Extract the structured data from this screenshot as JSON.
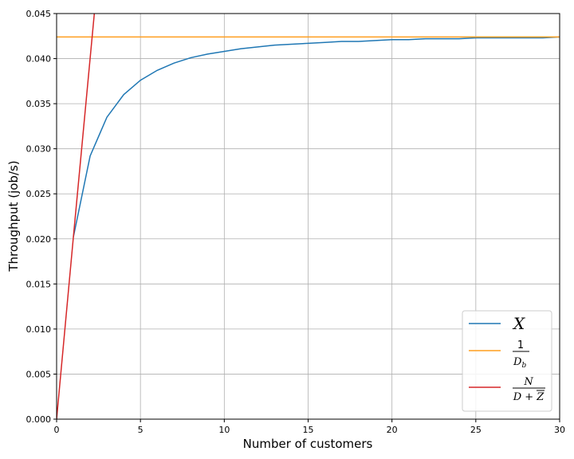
{
  "chart_data": {
    "type": "line",
    "title": "",
    "xlabel": "Number of customers",
    "ylabel": "Throughput (job/s)",
    "xlim": [
      0,
      30
    ],
    "ylim": [
      0,
      0.045
    ],
    "xticks": [
      0,
      5,
      10,
      15,
      20,
      25,
      30
    ],
    "yticks": [
      0.0,
      0.005,
      0.01,
      0.015,
      0.02,
      0.025,
      0.03,
      0.035,
      0.04,
      0.045
    ],
    "grid": true,
    "legend_position": "bottom-right",
    "series": [
      {
        "name": "X",
        "color": "#1f77b4",
        "x": [
          1,
          2,
          3,
          4,
          5,
          6,
          7,
          8,
          9,
          10,
          11,
          12,
          13,
          14,
          15,
          16,
          17,
          18,
          19,
          20,
          21,
          22,
          23,
          24,
          25,
          26,
          27,
          28,
          29,
          30
        ],
        "y": [
          0.0202,
          0.0292,
          0.0335,
          0.036,
          0.0376,
          0.0387,
          0.0395,
          0.0401,
          0.0405,
          0.0408,
          0.0411,
          0.0413,
          0.0415,
          0.0416,
          0.0417,
          0.0418,
          0.0419,
          0.0419,
          0.042,
          0.0421,
          0.0421,
          0.0422,
          0.0422,
          0.0422,
          0.0423,
          0.0423,
          0.0423,
          0.0423,
          0.0423,
          0.0424
        ]
      },
      {
        "name": "1/D_b",
        "color": "#ff9e1f",
        "x": [
          0,
          30
        ],
        "y": [
          0.0424,
          0.0424
        ]
      },
      {
        "name": "N/(D+Z)",
        "color": "#d62728",
        "x": [
          0,
          1,
          2.25
        ],
        "y": [
          0.0,
          0.0202,
          0.045
        ]
      }
    ],
    "legend": {
      "x_label": "X",
      "one": "1",
      "db": "D",
      "db_sub": "b",
      "n": "N",
      "dz": "D + Z"
    }
  }
}
